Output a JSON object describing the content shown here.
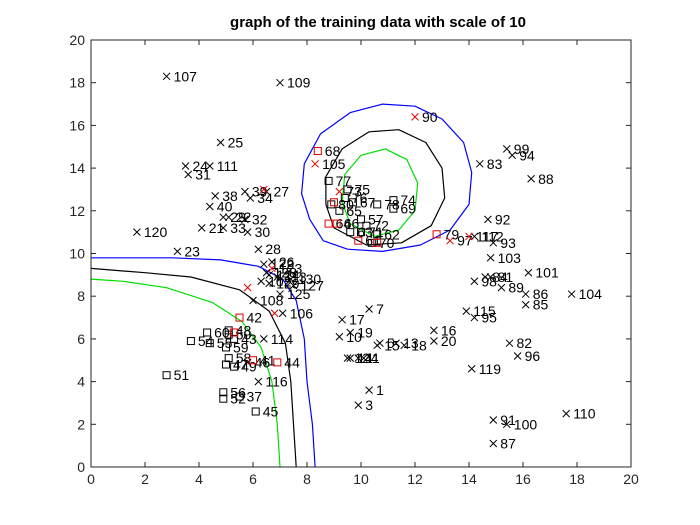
{
  "chart_data": {
    "type": "scatter",
    "title": "graph of the training data with scale of 10",
    "xlim": [
      0,
      20
    ],
    "ylim": [
      0,
      20
    ],
    "xticks": [
      "0",
      "2",
      "4",
      "6",
      "8",
      "10",
      "12",
      "14",
      "16",
      "18",
      "20"
    ],
    "yticks": [
      "0",
      "2",
      "4",
      "6",
      "8",
      "10",
      "12",
      "14",
      "16",
      "18",
      "20"
    ],
    "grid": false,
    "series": [
      {
        "marker": "x",
        "color": "#000000",
        "points": [
          {
            "x": 10.3,
            "y": 3.6,
            "label": "1"
          },
          {
            "x": 9.9,
            "y": 2.9,
            "label": "3"
          },
          {
            "x": 10.1,
            "y": 5.1,
            "label": "4"
          },
          {
            "x": 10.7,
            "y": 5.8,
            "label": "5"
          },
          {
            "x": 10.3,
            "y": 7.4,
            "label": "7"
          },
          {
            "x": 9.9,
            "y": 5.1,
            "label": "11"
          },
          {
            "x": 11.3,
            "y": 5.8,
            "label": "13"
          },
          {
            "x": 9.5,
            "y": 5.1,
            "label": "12"
          },
          {
            "x": 9.2,
            "y": 6.1,
            "label": "10"
          },
          {
            "x": 9.6,
            "y": 6.3,
            "label": "19"
          },
          {
            "x": 10.6,
            "y": 5.7,
            "label": "15"
          },
          {
            "x": 11.6,
            "y": 5.7,
            "label": "18"
          },
          {
            "x": 12.7,
            "y": 6.4,
            "label": "16"
          },
          {
            "x": 12.7,
            "y": 5.9,
            "label": "20"
          },
          {
            "x": 9.3,
            "y": 6.9,
            "label": "17"
          },
          {
            "x": 9.6,
            "y": 5.1,
            "label": "14"
          },
          {
            "x": 14.1,
            "y": 4.6,
            "label": "119"
          },
          {
            "x": 13.9,
            "y": 7.3,
            "label": "115"
          },
          {
            "x": 14.2,
            "y": 7.0,
            "label": "95"
          },
          {
            "x": 15.5,
            "y": 5.8,
            "label": "82"
          },
          {
            "x": 15.8,
            "y": 5.2,
            "label": "96"
          },
          {
            "x": 16.1,
            "y": 7.6,
            "label": "85"
          },
          {
            "x": 16.1,
            "y": 8.1,
            "label": "86"
          },
          {
            "x": 15.2,
            "y": 8.4,
            "label": "89"
          },
          {
            "x": 14.6,
            "y": 8.9,
            "label": "84"
          },
          {
            "x": 14.2,
            "y": 8.7,
            "label": "98"
          },
          {
            "x": 14.8,
            "y": 8.9,
            "label": "81"
          },
          {
            "x": 16.2,
            "y": 9.1,
            "label": "101"
          },
          {
            "x": 17.8,
            "y": 8.1,
            "label": "104"
          },
          {
            "x": 14.8,
            "y": 9.8,
            "label": "103"
          },
          {
            "x": 14.9,
            "y": 10.5,
            "label": "93"
          },
          {
            "x": 14.2,
            "y": 10.8,
            "label": "112"
          },
          {
            "x": 14.7,
            "y": 11.6,
            "label": "92"
          },
          {
            "x": 14.9,
            "y": 2.2,
            "label": "91"
          },
          {
            "x": 15.4,
            "y": 2.0,
            "label": "100"
          },
          {
            "x": 14.9,
            "y": 1.1,
            "label": "87"
          },
          {
            "x": 17.6,
            "y": 2.5,
            "label": "110"
          },
          {
            "x": 15.4,
            "y": 14.9,
            "label": "99"
          },
          {
            "x": 15.6,
            "y": 14.6,
            "label": "94"
          },
          {
            "x": 14.4,
            "y": 14.2,
            "label": "83"
          },
          {
            "x": 16.3,
            "y": 13.5,
            "label": "88"
          },
          {
            "x": 2.8,
            "y": 18.3,
            "label": "107"
          },
          {
            "x": 7.0,
            "y": 18.0,
            "label": "109"
          },
          {
            "x": 4.8,
            "y": 15.2,
            "label": "25"
          },
          {
            "x": 3.5,
            "y": 14.1,
            "label": "24"
          },
          {
            "x": 4.4,
            "y": 14.1,
            "label": "111"
          },
          {
            "x": 3.6,
            "y": 13.7,
            "label": "31"
          },
          {
            "x": 5.7,
            "y": 12.9,
            "label": "39"
          },
          {
            "x": 6.5,
            "y": 12.9,
            "label": "27"
          },
          {
            "x": 5.9,
            "y": 12.6,
            "label": "34"
          },
          {
            "x": 4.6,
            "y": 12.7,
            "label": "38"
          },
          {
            "x": 4.4,
            "y": 12.2,
            "label": "40"
          },
          {
            "x": 4.9,
            "y": 11.7,
            "label": "29"
          },
          {
            "x": 5.1,
            "y": 11.7,
            "label": "22"
          },
          {
            "x": 5.7,
            "y": 11.6,
            "label": "32"
          },
          {
            "x": 4.1,
            "y": 11.2,
            "label": "21"
          },
          {
            "x": 4.9,
            "y": 11.2,
            "label": "33"
          },
          {
            "x": 5.8,
            "y": 11.0,
            "label": "30"
          },
          {
            "x": 1.7,
            "y": 11.0,
            "label": "120"
          },
          {
            "x": 3.2,
            "y": 10.1,
            "label": "23"
          },
          {
            "x": 6.2,
            "y": 10.2,
            "label": "28"
          },
          {
            "x": 6.7,
            "y": 9.6,
            "label": "26"
          },
          {
            "x": 6.4,
            "y": 9.5,
            "label": "122"
          },
          {
            "x": 6.9,
            "y": 8.9,
            "label": "113"
          },
          {
            "x": 6.6,
            "y": 8.6,
            "label": "129"
          },
          {
            "x": 7.0,
            "y": 8.1,
            "label": "125"
          },
          {
            "x": 7.1,
            "y": 7.2,
            "label": "106"
          },
          {
            "x": 6.0,
            "y": 7.8,
            "label": "108"
          },
          {
            "x": 6.5,
            "y": 9.1,
            "label": "128"
          },
          {
            "x": 6.3,
            "y": 8.7,
            "label": "102"
          },
          {
            "x": 7.4,
            "y": 8.8,
            "label": "130"
          },
          {
            "x": 7.5,
            "y": 8.5,
            "label": "127"
          },
          {
            "x": 6.6,
            "y": 9.0,
            "label": "124"
          },
          {
            "x": 6.4,
            "y": 6.0,
            "label": "114"
          },
          {
            "x": 5.8,
            "y": 4.9,
            "label": "46"
          },
          {
            "x": 6.2,
            "y": 4.0,
            "label": "116"
          }
        ]
      },
      {
        "marker": "square",
        "color": "#000000",
        "points": [
          {
            "x": 8.8,
            "y": 13.4,
            "label": "77"
          },
          {
            "x": 9.5,
            "y": 13.0,
            "label": "75"
          },
          {
            "x": 9.4,
            "y": 12.6,
            "label": "76"
          },
          {
            "x": 9.7,
            "y": 12.4,
            "label": "67"
          },
          {
            "x": 9.2,
            "y": 12.0,
            "label": "65"
          },
          {
            "x": 8.9,
            "y": 12.3,
            "label": "80"
          },
          {
            "x": 11.2,
            "y": 12.5,
            "label": "74"
          },
          {
            "x": 10.6,
            "y": 12.3,
            "label": "78"
          },
          {
            "x": 11.2,
            "y": 12.1,
            "label": "69"
          },
          {
            "x": 10.0,
            "y": 11.6,
            "label": "57"
          },
          {
            "x": 10.2,
            "y": 11.3,
            "label": "72"
          },
          {
            "x": 10.0,
            "y": 11.0,
            "label": "71"
          },
          {
            "x": 10.6,
            "y": 10.9,
            "label": "62"
          },
          {
            "x": 10.4,
            "y": 10.5,
            "label": "70"
          },
          {
            "x": 9.6,
            "y": 11.0,
            "label": "63"
          },
          {
            "x": 3.7,
            "y": 5.9,
            "label": "54"
          },
          {
            "x": 4.3,
            "y": 6.3,
            "label": "60"
          },
          {
            "x": 4.4,
            "y": 5.8,
            "label": "55"
          },
          {
            "x": 5.1,
            "y": 6.4,
            "label": "48"
          },
          {
            "x": 5.1,
            "y": 6.2,
            "label": "50"
          },
          {
            "x": 5.3,
            "y": 6.0,
            "label": "43"
          },
          {
            "x": 5.0,
            "y": 5.6,
            "label": "59"
          },
          {
            "x": 5.1,
            "y": 5.1,
            "label": "58"
          },
          {
            "x": 5.0,
            "y": 4.8,
            "label": "47"
          },
          {
            "x": 5.3,
            "y": 4.7,
            "label": "49"
          },
          {
            "x": 2.8,
            "y": 4.3,
            "label": "51"
          },
          {
            "x": 4.9,
            "y": 3.5,
            "label": "56"
          },
          {
            "x": 4.9,
            "y": 3.2,
            "label": "52"
          },
          {
            "x": 5.5,
            "y": 3.3,
            "label": "37"
          },
          {
            "x": 6.1,
            "y": 2.6,
            "label": "45"
          }
        ]
      },
      {
        "marker": "square",
        "color": "#e00000",
        "points": [
          {
            "x": 8.4,
            "y": 14.8,
            "label": "68"
          },
          {
            "x": 8.8,
            "y": 11.4,
            "label": "64"
          },
          {
            "x": 9.1,
            "y": 11.4,
            "label": "66"
          },
          {
            "x": 9.9,
            "y": 10.6,
            "label": "61"
          },
          {
            "x": 10.6,
            "y": 10.5,
            "label": ""
          },
          {
            "x": 12.8,
            "y": 10.9,
            "label": "79"
          },
          {
            "x": 5.5,
            "y": 7.0,
            "label": "42"
          },
          {
            "x": 6.0,
            "y": 5.0,
            "label": "41"
          },
          {
            "x": 6.9,
            "y": 4.9,
            "label": "44"
          },
          {
            "x": 5.3,
            "y": 6.3,
            "label": ""
          },
          {
            "x": 9.0,
            "y": 12.4,
            "label": ""
          }
        ]
      },
      {
        "marker": "x",
        "color": "#e00000",
        "points": [
          {
            "x": 12.0,
            "y": 16.4,
            "label": "90"
          },
          {
            "x": 8.3,
            "y": 14.2,
            "label": "105"
          },
          {
            "x": 9.2,
            "y": 12.9,
            "label": "73"
          },
          {
            "x": 13.3,
            "y": 10.6,
            "label": "97"
          },
          {
            "x": 14.0,
            "y": 10.8,
            "label": "117"
          },
          {
            "x": 6.4,
            "y": 13.0,
            "label": ""
          },
          {
            "x": 6.7,
            "y": 9.3,
            "label": "123"
          },
          {
            "x": 5.8,
            "y": 8.4,
            "label": ""
          },
          {
            "x": 6.8,
            "y": 7.2,
            "label": ""
          }
        ]
      }
    ],
    "contours": [
      {
        "color": "#0000ff",
        "paths": [
          [
            [
              8.3,
              0
            ],
            [
              8.2,
              2
            ],
            [
              8.0,
              4
            ],
            [
              7.9,
              6
            ],
            [
              7.6,
              7.8
            ],
            [
              7.1,
              8.8
            ],
            [
              6.2,
              9.4
            ],
            [
              4.8,
              9.7
            ],
            [
              3,
              9.8
            ],
            [
              0,
              9.8
            ]
          ],
          [
            [
              8.6,
              10.6
            ],
            [
              8.1,
              11.6
            ],
            [
              7.8,
              12.8
            ],
            [
              7.9,
              14.2
            ],
            [
              8.5,
              15.6
            ],
            [
              9.6,
              16.6
            ],
            [
              10.8,
              17.0
            ],
            [
              12.0,
              16.9
            ],
            [
              13.0,
              16.3
            ],
            [
              13.8,
              15.2
            ],
            [
              14.1,
              13.8
            ],
            [
              14.0,
              12.3
            ],
            [
              13.3,
              11.1
            ],
            [
              12.2,
              10.4
            ],
            [
              10.8,
              10.1
            ],
            [
              9.5,
              10.2
            ],
            [
              8.6,
              10.6
            ]
          ]
        ]
      },
      {
        "color": "#000000",
        "paths": [
          [
            [
              7.6,
              0
            ],
            [
              7.5,
              2
            ],
            [
              7.4,
              4
            ],
            [
              7.2,
              5.8
            ],
            [
              6.6,
              7.3
            ],
            [
              5.5,
              8.3
            ],
            [
              3.7,
              8.9
            ],
            [
              2,
              9.1
            ],
            [
              0,
              9.3
            ]
          ],
          [
            [
              9.0,
              11.2
            ],
            [
              8.7,
              12.3
            ],
            [
              8.7,
              13.6
            ],
            [
              9.3,
              14.9
            ],
            [
              10.3,
              15.7
            ],
            [
              11.4,
              15.8
            ],
            [
              12.4,
              15.2
            ],
            [
              13.0,
              14.0
            ],
            [
              13.1,
              12.6
            ],
            [
              12.6,
              11.3
            ],
            [
              11.5,
              10.5
            ],
            [
              10.2,
              10.4
            ],
            [
              9.0,
              11.2
            ]
          ]
        ]
      },
      {
        "color": "#00dd00",
        "paths": [
          [
            [
              7.0,
              0
            ],
            [
              6.9,
              2
            ],
            [
              6.7,
              4
            ],
            [
              6.3,
              5.6
            ],
            [
              5.6,
              6.8
            ],
            [
              4.5,
              7.7
            ],
            [
              2.8,
              8.4
            ],
            [
              1.2,
              8.7
            ],
            [
              0,
              8.8
            ]
          ],
          [
            [
              9.6,
              11.4
            ],
            [
              9.3,
              12.4
            ],
            [
              9.4,
              13.7
            ],
            [
              10.0,
              14.6
            ],
            [
              10.9,
              14.9
            ],
            [
              11.7,
              14.4
            ],
            [
              12.1,
              13.3
            ],
            [
              12.0,
              12.0
            ],
            [
              11.4,
              11.1
            ],
            [
              10.5,
              10.8
            ],
            [
              9.6,
              11.4
            ]
          ]
        ]
      }
    ]
  }
}
